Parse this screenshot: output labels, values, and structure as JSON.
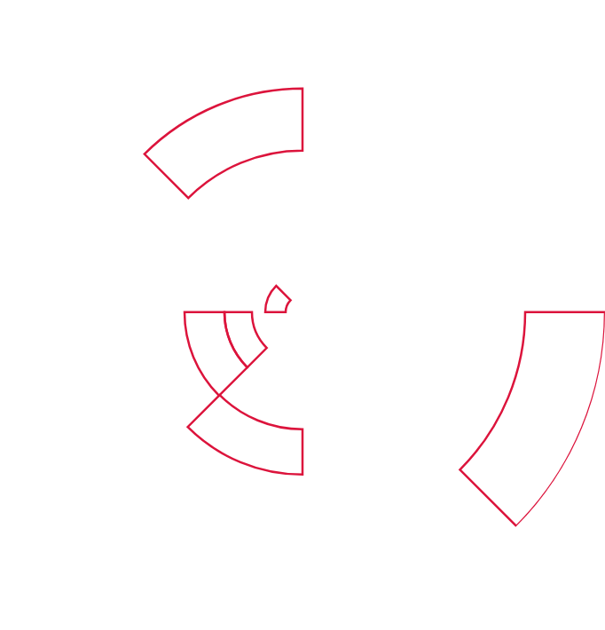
{
  "chart_data": {
    "type": "barpolar",
    "rlim": [
      0,
      34.1
    ],
    "tick_labels": false,
    "grid": false,
    "stacked": true,
    "color": "#dc143c",
    "series": [
      {
        "theta": [
          112.5,
          337.5,
          247.5,
          202.5,
          157.5
        ],
        "base": [
          18.2,
          25.1,
          13.2,
          5.7,
          1.9
        ],
        "values": [
          7.0,
          9.0,
          5.1,
          3.1,
          2.3
        ]
      },
      {
        "theta": [
          202.5
        ],
        "base": [
          8.8
        ],
        "values": [
          4.5
        ]
      }
    ]
  }
}
